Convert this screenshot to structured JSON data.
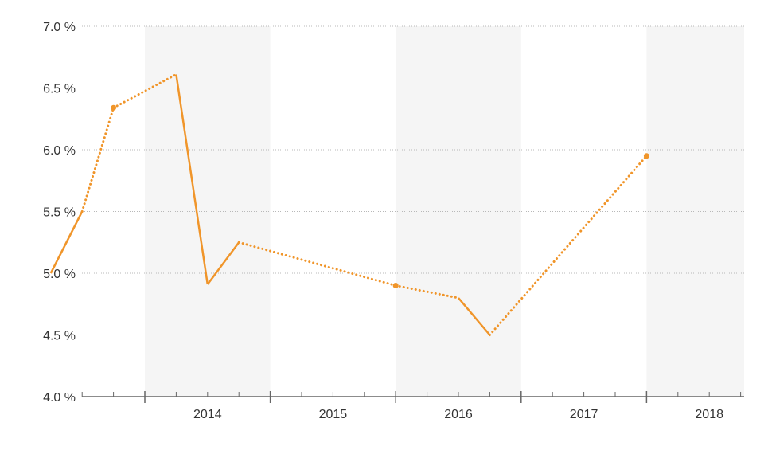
{
  "chart_data": {
    "type": "line",
    "title": "",
    "xlabel": "",
    "ylabel": "",
    "ylim": [
      4.0,
      7.0
    ],
    "y_ticks": [
      "4.0 %",
      "4.5 %",
      "5.0 %",
      "5.5 %",
      "6.0 %",
      "6.5 %",
      "7.0 %"
    ],
    "x_ticks": [
      "2014",
      "2015",
      "2016",
      "2017",
      "2018"
    ],
    "grid": true,
    "legend": "none",
    "color": "#f0952a",
    "points": [
      {
        "x": 2013.25,
        "y": 5.0,
        "seg_to_next": "solid",
        "marker": false
      },
      {
        "x": 2013.5,
        "y": 5.5,
        "seg_to_next": "dotted",
        "marker": false
      },
      {
        "x": 2013.75,
        "y": 6.34,
        "seg_to_next": "dotted",
        "marker": true
      },
      {
        "x": 2014.25,
        "y": 6.61,
        "seg_to_next": "solid",
        "marker": false
      },
      {
        "x": 2014.5,
        "y": 4.91,
        "seg_to_next": "solid",
        "marker": false
      },
      {
        "x": 2014.75,
        "y": 5.25,
        "seg_to_next": "dotted",
        "marker": false
      },
      {
        "x": 2016.0,
        "y": 4.9,
        "seg_to_next": "dotted",
        "marker": true
      },
      {
        "x": 2016.5,
        "y": 4.8,
        "seg_to_next": "solid",
        "marker": false
      },
      {
        "x": 2016.75,
        "y": 4.5,
        "seg_to_next": "dotted",
        "marker": false
      },
      {
        "x": 2018.0,
        "y": 5.95,
        "seg_to_next": null,
        "marker": true
      }
    ]
  }
}
